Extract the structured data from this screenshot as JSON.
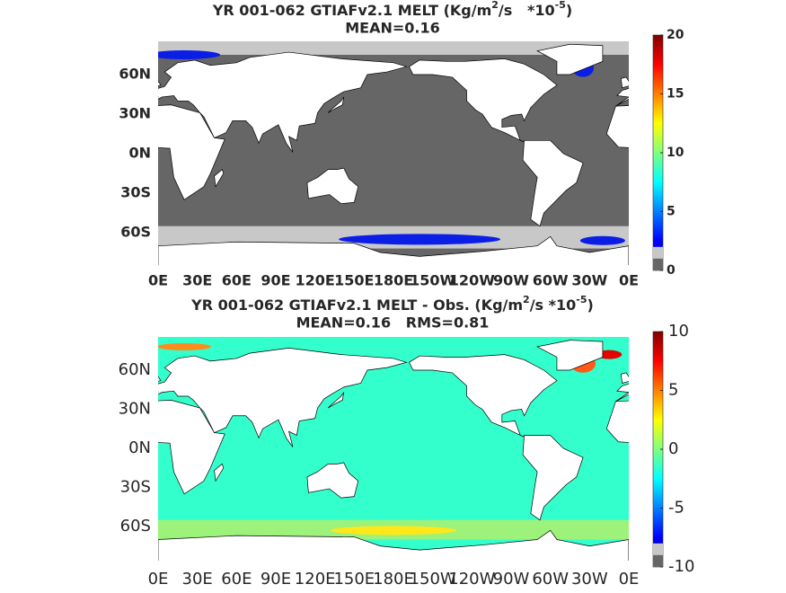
{
  "panels": [
    {
      "title": {
        "text1": "YR 001-062 GTIAFv2.1 MELT (Kg/m",
        "sup1": "2",
        "text2": "/s   *10",
        "sup2": "-5",
        "text3": ")"
      },
      "subtitle": "MEAN=0.16",
      "lat_labels": [
        "60N",
        "30N",
        "0N",
        "30S",
        "60S"
      ],
      "lon_labels": [
        "0E",
        "30E",
        "60E",
        "90E",
        "120E",
        "150E",
        "180E",
        "150W",
        "120W",
        "90W",
        "60W",
        "30W",
        "0E"
      ],
      "colorbar": {
        "lim": [
          0,
          20
        ],
        "ticks": [
          0,
          5,
          10,
          15,
          20
        ]
      }
    },
    {
      "title": {
        "text1": "YR 001-062 GTIAFv2.1 MELT - Obs. (Kg/m",
        "sup1": "2",
        "text2": "/s *10",
        "sup2": "-5",
        "text3": ")"
      },
      "subtitle": "MEAN=0.16   RMS=0.81",
      "lat_labels": [
        "60N",
        "30N",
        "0N",
        "30S",
        "60S"
      ],
      "lon_labels": [
        "0E",
        "30E",
        "60E",
        "90E",
        "120E",
        "150E",
        "180E",
        "150W",
        "120W",
        "90W",
        "60W",
        "30W",
        "0E"
      ],
      "colorbar": {
        "lim": [
          -10,
          10
        ],
        "ticks": [
          -10,
          -5,
          0,
          5,
          10
        ]
      }
    }
  ]
}
